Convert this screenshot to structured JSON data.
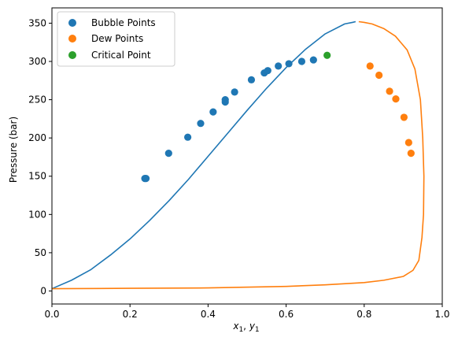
{
  "chart_data": {
    "type": "scatter",
    "title": "",
    "xlabel_main": "x",
    "xlabel_sub1": "1",
    "xlabel_sep": ", ",
    "xlabel_main2": "y",
    "xlabel_sub2": "1",
    "ylabel": "Pressure (bar)",
    "xlim": [
      0.0,
      1.0
    ],
    "ylim": [
      -17,
      370
    ],
    "x_ticks": [
      0.0,
      0.2,
      0.4,
      0.6,
      0.8,
      1.0
    ],
    "x_tick_labels": [
      "0.0",
      "0.2",
      "0.4",
      "0.6",
      "0.8",
      "1.0"
    ],
    "y_ticks": [
      0,
      50,
      100,
      150,
      200,
      250,
      300,
      350
    ],
    "y_tick_labels": [
      "0",
      "50",
      "100",
      "150",
      "200",
      "250",
      "300",
      "350"
    ],
    "grid": false,
    "legend_position": "top-left",
    "colors": {
      "bubble": "#1f77b4",
      "dew": "#ff7f0e",
      "critical": "#2ca02c"
    },
    "series": [
      {
        "name": "Bubble Points",
        "kind": "scatter",
        "color": "#1f77b4",
        "points": [
          [
            0.238,
            147
          ],
          [
            0.241,
            147
          ],
          [
            0.299,
            180
          ],
          [
            0.348,
            201
          ],
          [
            0.381,
            219
          ],
          [
            0.413,
            234
          ],
          [
            0.444,
            247
          ],
          [
            0.444,
            250
          ],
          [
            0.468,
            260
          ],
          [
            0.511,
            276
          ],
          [
            0.544,
            285
          ],
          [
            0.553,
            288
          ],
          [
            0.58,
            294
          ],
          [
            0.607,
            297
          ],
          [
            0.64,
            300
          ],
          [
            0.67,
            302
          ]
        ]
      },
      {
        "name": "Dew Points",
        "kind": "scatter",
        "color": "#ff7f0e",
        "points": [
          [
            0.815,
            294
          ],
          [
            0.838,
            282
          ],
          [
            0.865,
            261
          ],
          [
            0.881,
            251
          ],
          [
            0.902,
            227
          ],
          [
            0.914,
            194
          ],
          [
            0.92,
            180
          ]
        ]
      },
      {
        "name": "Critical Point",
        "kind": "scatter",
        "color": "#2ca02c",
        "points": [
          [
            0.705,
            308
          ]
        ]
      },
      {
        "kind": "line",
        "color": "#1f77b4",
        "points": [
          [
            0.0,
            3
          ],
          [
            0.05,
            14
          ],
          [
            0.1,
            28
          ],
          [
            0.15,
            47
          ],
          [
            0.2,
            68
          ],
          [
            0.25,
            92
          ],
          [
            0.3,
            118
          ],
          [
            0.35,
            146
          ],
          [
            0.4,
            176
          ],
          [
            0.45,
            206
          ],
          [
            0.5,
            236
          ],
          [
            0.55,
            265
          ],
          [
            0.6,
            292
          ],
          [
            0.65,
            316
          ],
          [
            0.7,
            336
          ],
          [
            0.75,
            349
          ],
          [
            0.77,
            351
          ],
          [
            0.778,
            352
          ]
        ]
      },
      {
        "kind": "line",
        "color": "#ff7f0e",
        "points": [
          [
            0.0,
            3
          ],
          [
            0.2,
            3.5
          ],
          [
            0.4,
            4
          ],
          [
            0.6,
            6
          ],
          [
            0.7,
            8
          ],
          [
            0.8,
            11
          ],
          [
            0.85,
            14
          ],
          [
            0.9,
            19
          ],
          [
            0.925,
            27
          ],
          [
            0.94,
            40
          ],
          [
            0.948,
            70
          ],
          [
            0.952,
            100
          ],
          [
            0.953,
            150
          ],
          [
            0.95,
            200
          ],
          [
            0.944,
            250
          ],
          [
            0.93,
            290
          ],
          [
            0.91,
            315
          ],
          [
            0.88,
            333
          ],
          [
            0.85,
            343
          ],
          [
            0.82,
            349
          ],
          [
            0.8,
            351
          ],
          [
            0.786,
            352
          ]
        ]
      }
    ]
  }
}
